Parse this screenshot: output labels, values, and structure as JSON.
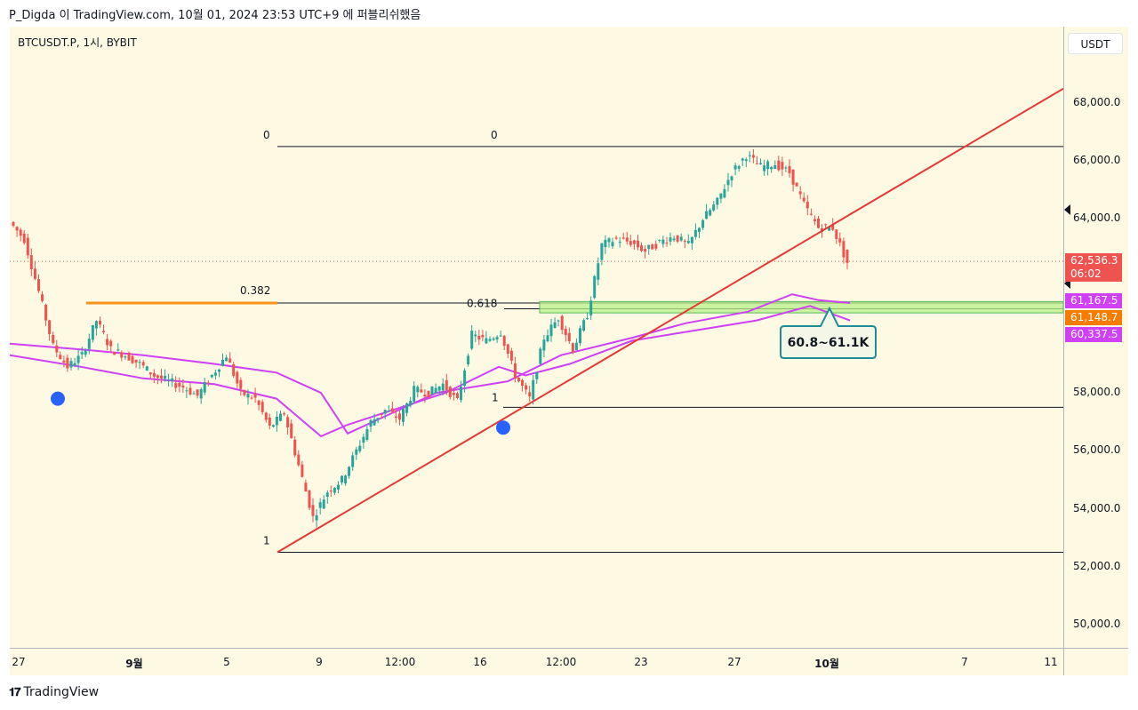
{
  "header": {
    "text": "P_Digda 이 TradingView.com, 10월 01, 2024 23:53 UTC+9 에 퍼블리쉬했음"
  },
  "symbol": "BTCUSDT.P, 1시, BYBIT",
  "currency": "USDT",
  "brand": "TradingView",
  "colors": {
    "background": "#fdf9e3",
    "candle_up": "#26a69a",
    "candle_down": "#ef5350",
    "trendline": "#e53935",
    "vwap_band": "#d040f5",
    "fib_line": "#131722",
    "highlight_zone": "#b8f08a",
    "fib_0382_line": "#f7931a",
    "marker": "#2962ff"
  },
  "chart_data": {
    "type": "line",
    "title": "",
    "xlabel": "",
    "ylabel": "",
    "ylim": [
      49000,
      69000
    ],
    "x_ticks": [
      "27",
      "9월",
      "5",
      "9",
      "12:00",
      "16",
      "12:00",
      "23",
      "27",
      "10월",
      "7",
      "11"
    ],
    "y_ticks": [
      50000,
      52000,
      54000,
      56000,
      58000,
      60000,
      62000,
      64000,
      66000,
      68000
    ],
    "y_tick_labels": [
      "50,000.0",
      "52,000.0",
      "54,000.0",
      "56,000.0",
      "58,000.0",
      "60,000.0",
      "62,000.0",
      "64,000.0",
      "66,000.0",
      "68,000.0"
    ],
    "series": [
      {
        "values": [
          63900,
          63300,
          61500,
          59600,
          58900,
          59300,
          60500,
          59500,
          59300,
          59000,
          58600,
          58400,
          58200,
          57900,
          58600,
          59300,
          58000,
          57800,
          56800,
          57300,
          55500,
          53700,
          54600,
          55000,
          56000,
          57000,
          57400,
          57100,
          58100,
          58000,
          58300,
          57700,
          60000,
          59800,
          60100,
          58600,
          57800,
          59900,
          60600,
          59500,
          60700,
          63100,
          63300,
          63200,
          62900,
          63200,
          63400,
          63100,
          64000,
          64600,
          65600,
          66200,
          65800,
          65900,
          65600,
          64500,
          63700,
          63700,
          62500
        ]
      }
    ],
    "price_labels": [
      {
        "label": "62,536.3",
        "sub": "06:02",
        "value": 62536.3,
        "color": "#ef5350"
      },
      {
        "label": "61,167.5",
        "value": 61167.5,
        "color": "#d040f5"
      },
      {
        "label": "61,148.7",
        "value": 61148.7,
        "color": "#f57c00"
      },
      {
        "label": "60,337.5",
        "value": 60337.5,
        "color": "#d040f5"
      }
    ],
    "fib_levels": [
      {
        "label": "0",
        "value": 66500
      },
      {
        "label": "0",
        "value": 66500
      },
      {
        "label": "0.382",
        "value": 61100
      },
      {
        "label": "0.618",
        "value": 61100
      },
      {
        "label": "1",
        "value": 57500
      },
      {
        "label": "1",
        "value": 52500
      }
    ],
    "zone_label": "60.8~61.1K",
    "zone_range": [
      60800,
      61100
    ]
  }
}
